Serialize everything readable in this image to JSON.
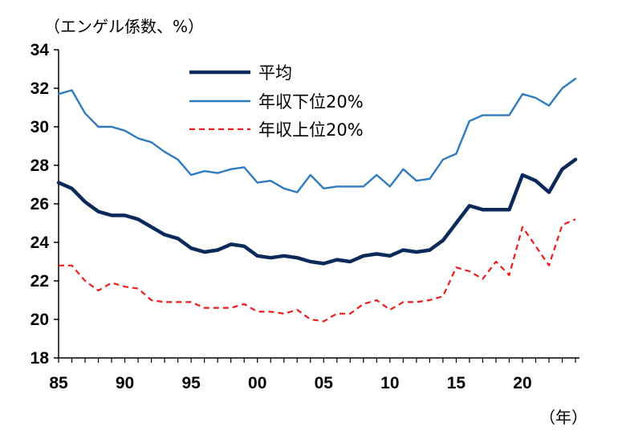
{
  "chart_data": {
    "type": "line",
    "title": "",
    "ylabel": "（エンゲル係数、%）",
    "xlabel": "（年）",
    "ylim": [
      18,
      34
    ],
    "yticks": [
      18,
      20,
      22,
      24,
      26,
      28,
      30,
      32,
      34
    ],
    "xlim": [
      1985,
      2024
    ],
    "xticks": [
      1985,
      1990,
      1995,
      2000,
      2005,
      2010,
      2015,
      2020
    ],
    "xtick_labels": [
      "85",
      "90",
      "95",
      "00",
      "05",
      "10",
      "15",
      "20"
    ],
    "grid": false,
    "legend_position": "top-center",
    "x": [
      1985,
      1986,
      1987,
      1988,
      1989,
      1990,
      1991,
      1992,
      1993,
      1994,
      1995,
      1996,
      1997,
      1998,
      1999,
      2000,
      2001,
      2002,
      2003,
      2004,
      2005,
      2006,
      2007,
      2008,
      2009,
      2010,
      2011,
      2012,
      2013,
      2014,
      2015,
      2016,
      2017,
      2018,
      2019,
      2020,
      2021,
      2022,
      2023,
      2024
    ],
    "series": [
      {
        "name": "平均",
        "color": "#0b2a5c",
        "style": "solid-thick",
        "values": [
          27.1,
          26.8,
          26.1,
          25.6,
          25.4,
          25.4,
          25.2,
          24.8,
          24.4,
          24.2,
          23.7,
          23.5,
          23.6,
          23.9,
          23.8,
          23.3,
          23.2,
          23.3,
          23.2,
          23.0,
          22.9,
          23.1,
          23.0,
          23.3,
          23.4,
          23.3,
          23.6,
          23.5,
          23.6,
          24.1,
          25.0,
          25.9,
          25.7,
          25.7,
          25.7,
          27.5,
          27.2,
          26.6,
          27.8,
          28.3
        ]
      },
      {
        "name": "年収下位20%",
        "color": "#2e7bbf",
        "style": "solid",
        "values": [
          31.7,
          31.9,
          30.7,
          30.0,
          30.0,
          29.8,
          29.4,
          29.2,
          28.7,
          28.3,
          27.5,
          27.7,
          27.6,
          27.8,
          27.9,
          27.1,
          27.2,
          26.8,
          26.6,
          27.5,
          26.8,
          26.9,
          26.9,
          26.9,
          27.5,
          26.9,
          27.8,
          27.2,
          27.3,
          28.3,
          28.6,
          30.3,
          30.6,
          30.6,
          30.6,
          31.7,
          31.5,
          31.1,
          32.0,
          32.5
        ]
      },
      {
        "name": "年収上位20%",
        "color": "#ee1c1c",
        "style": "dashed",
        "values": [
          22.8,
          22.8,
          22.0,
          21.5,
          21.9,
          21.7,
          21.6,
          21.0,
          20.9,
          20.9,
          20.9,
          20.6,
          20.6,
          20.6,
          20.8,
          20.4,
          20.4,
          20.3,
          20.5,
          20.0,
          19.9,
          20.3,
          20.3,
          20.8,
          21.0,
          20.5,
          20.9,
          20.9,
          21.0,
          21.2,
          22.7,
          22.5,
          22.1,
          23.0,
          22.3,
          24.8,
          23.8,
          22.8,
          24.9,
          25.2
        ]
      }
    ]
  }
}
